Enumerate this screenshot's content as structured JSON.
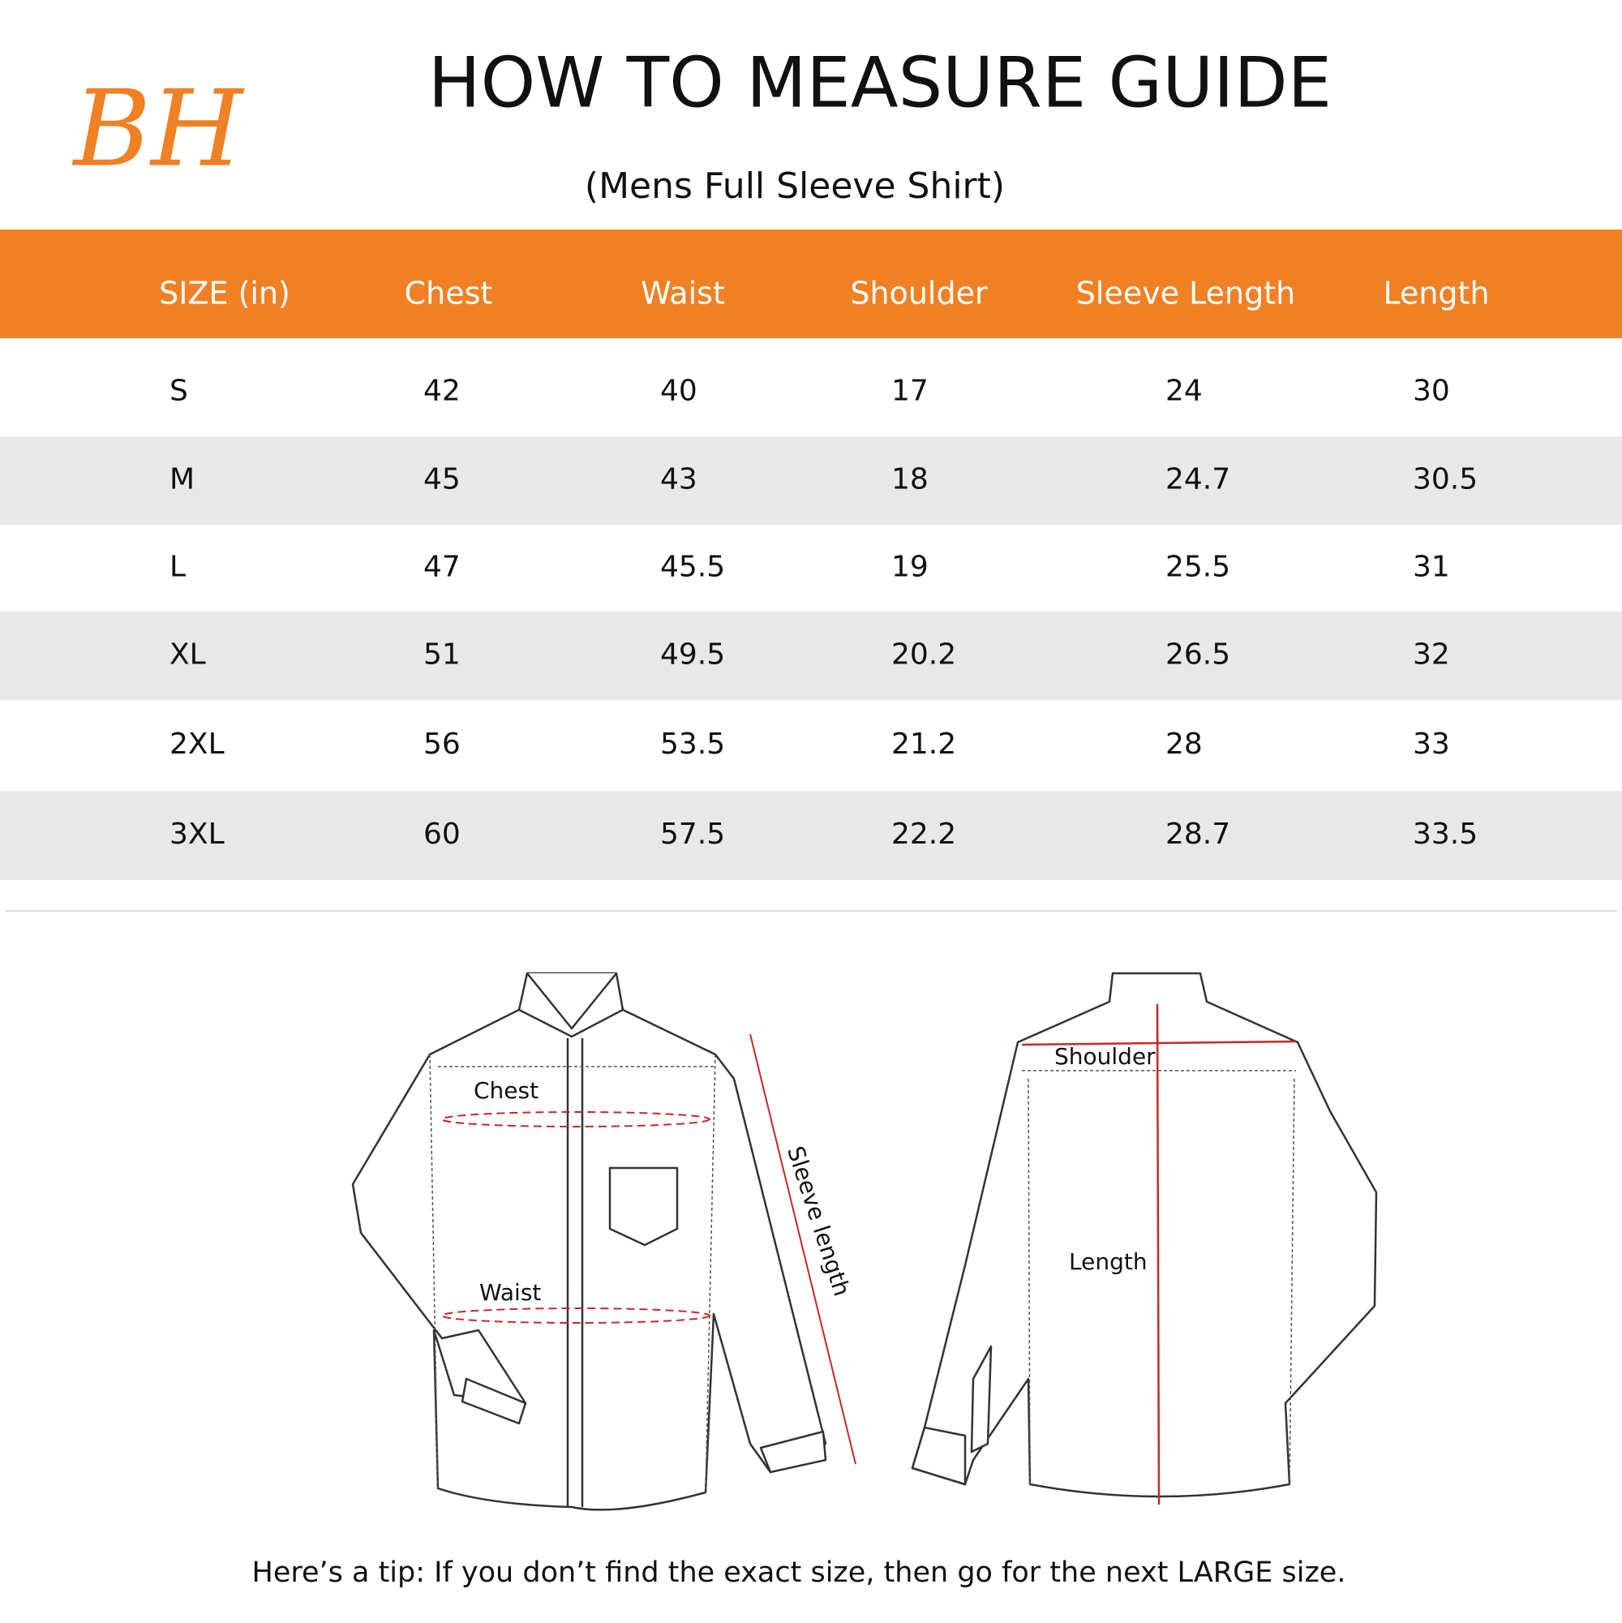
{
  "header": {
    "logo": "BH",
    "title": "HOW TO MEASURE GUIDE",
    "subtitle": "(Mens Full Sleeve  Shirt)"
  },
  "table": {
    "columns": [
      "SIZE (in)",
      "Chest",
      "Waist",
      "Shoulder",
      "Sleeve Length",
      "Length"
    ],
    "rows": [
      [
        "S",
        "42",
        "40",
        "17",
        "24",
        "30"
      ],
      [
        "M",
        "45",
        "43",
        "18",
        "24.7",
        "30.5"
      ],
      [
        "L",
        "47",
        "45.5",
        "19",
        "25.5",
        "31"
      ],
      [
        "XL",
        "51",
        "49.5",
        "20.2",
        "26.5",
        "32"
      ],
      [
        "2XL",
        "56",
        "53.5",
        "21.2",
        "28",
        "33"
      ],
      [
        "3XL",
        "60",
        "57.5",
        "22.2",
        "28.7",
        "33.5"
      ]
    ]
  },
  "diagram": {
    "front_labels": [
      "Chest",
      "Waist",
      "Sleeve length"
    ],
    "back_labels": [
      "Shoulder",
      "Length"
    ]
  },
  "tip": "Here’s a tip: If you don’t find the exact size, then go for the next LARGE size."
}
